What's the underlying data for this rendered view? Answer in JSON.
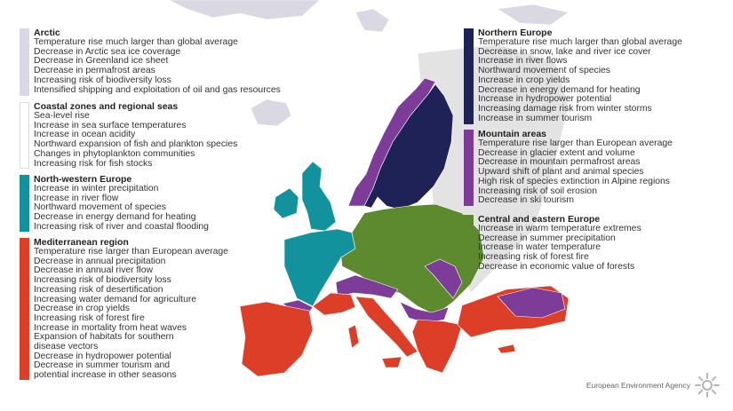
{
  "colors": {
    "arctic": "#d9d8e3",
    "coastal": "#ffffff",
    "northwest": "#12929c",
    "mediterranean": "#dc3e27",
    "northern": "#1f2257",
    "mountain": "#7d3c97",
    "central": "#5d8a2e",
    "land_other": "#e3e3e3"
  },
  "legend": {
    "arctic": {
      "title": "Arctic",
      "items": [
        "Temperature rise much larger than global average",
        "Decrease in Arctic sea ice coverage",
        "Decrease in Greenland ice sheet",
        "Decrease in permafrost areas",
        "Increasing risk of biodiversity loss",
        "Intensified shipping and exploitation of oil and gas resources"
      ]
    },
    "coastal": {
      "title": "Coastal zones and regional seas",
      "items": [
        "Sea-level rise",
        "Increase in sea surface temperatures",
        "Increase in ocean acidity",
        "Northward expansion of fish and plankton species",
        "Changes in phytoplankton communities",
        "Increasing risk for fish stocks"
      ]
    },
    "northwest": {
      "title": "North-western Europe",
      "items": [
        "Increase in winter precipitation",
        "Increase in river flow",
        "Northward movement of species",
        "Decrease in energy demand for heating",
        "Increasing risk of river and coastal flooding"
      ]
    },
    "mediterranean": {
      "title": "Mediterranean region",
      "items": [
        "Temperature rise larger than European average",
        "Decrease in annual precipitation",
        "Decrease in annual river flow",
        "Increasing risk of biodiversity loss",
        "Increasing risk of desertification",
        "Increasing water demand for agriculture",
        "Decrease in crop yields",
        "Increasing risk of forest fire",
        "Increase in mortality from heat waves",
        "Expansion of habitats for southern",
        "disease vectors",
        "Decrease in hydropower potential",
        "Decrease in summer tourism and",
        "potential increase in other seasons"
      ]
    },
    "northern": {
      "title": "Northern Europe",
      "items": [
        "Temperature rise much larger than global average",
        "Decrease in snow, lake and river ice cover",
        "Increase in river flows",
        "Northward movement of species",
        "Increase in crop yields",
        "Decrease in energy demand for heating",
        "Increase in hydropower potential",
        "Increasing damage risk from winter storms",
        "Increase in summer tourism"
      ]
    },
    "mountain": {
      "title": "Mountain areas",
      "items": [
        "Temperature rise larger than European average",
        "Decrease in glacier extent and volume",
        "Decrease in mountain permafrost areas",
        "Upward shift of plant and animal species",
        "High risk of species extinction in Alpine regions",
        "Increasing risk of soil erosion",
        "Decrease in ski tourism"
      ]
    },
    "central": {
      "title": "Central and eastern Europe",
      "items": [
        "Increase in warm temperature extremes",
        "Decrease in summer precipitation",
        "Increase in water temperature",
        "Increasing risk of forest fire",
        "Decrease in economic value of forests"
      ]
    }
  },
  "agency": {
    "name": "European Environment Agency",
    "icon": "sun-logo-icon"
  }
}
